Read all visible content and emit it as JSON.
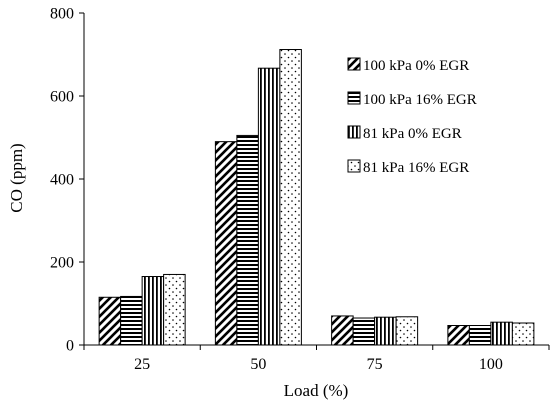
{
  "chart_data": {
    "type": "bar",
    "title": "",
    "xlabel": "Load (%)",
    "ylabel": "CO (ppm)",
    "categories": [
      "25",
      "50",
      "75",
      "100"
    ],
    "ylim": [
      0,
      800
    ],
    "yticks": [
      0,
      200,
      400,
      600,
      800
    ],
    "grid": false,
    "legend_position": "upper-right",
    "series": [
      {
        "name": "100 kPa 0% EGR",
        "pattern": "diagonal-hatch",
        "values": [
          115,
          490,
          70,
          47
        ]
      },
      {
        "name": "100 kPa 16% EGR",
        "pattern": "horizontal-lines",
        "values": [
          117,
          505,
          65,
          47
        ]
      },
      {
        "name": "81 kPa 0% EGR",
        "pattern": "vertical-lines",
        "values": [
          165,
          667,
          67,
          55
        ]
      },
      {
        "name": "81 kPa 16% EGR",
        "pattern": "dotted",
        "values": [
          170,
          712,
          68,
          53
        ]
      }
    ]
  }
}
